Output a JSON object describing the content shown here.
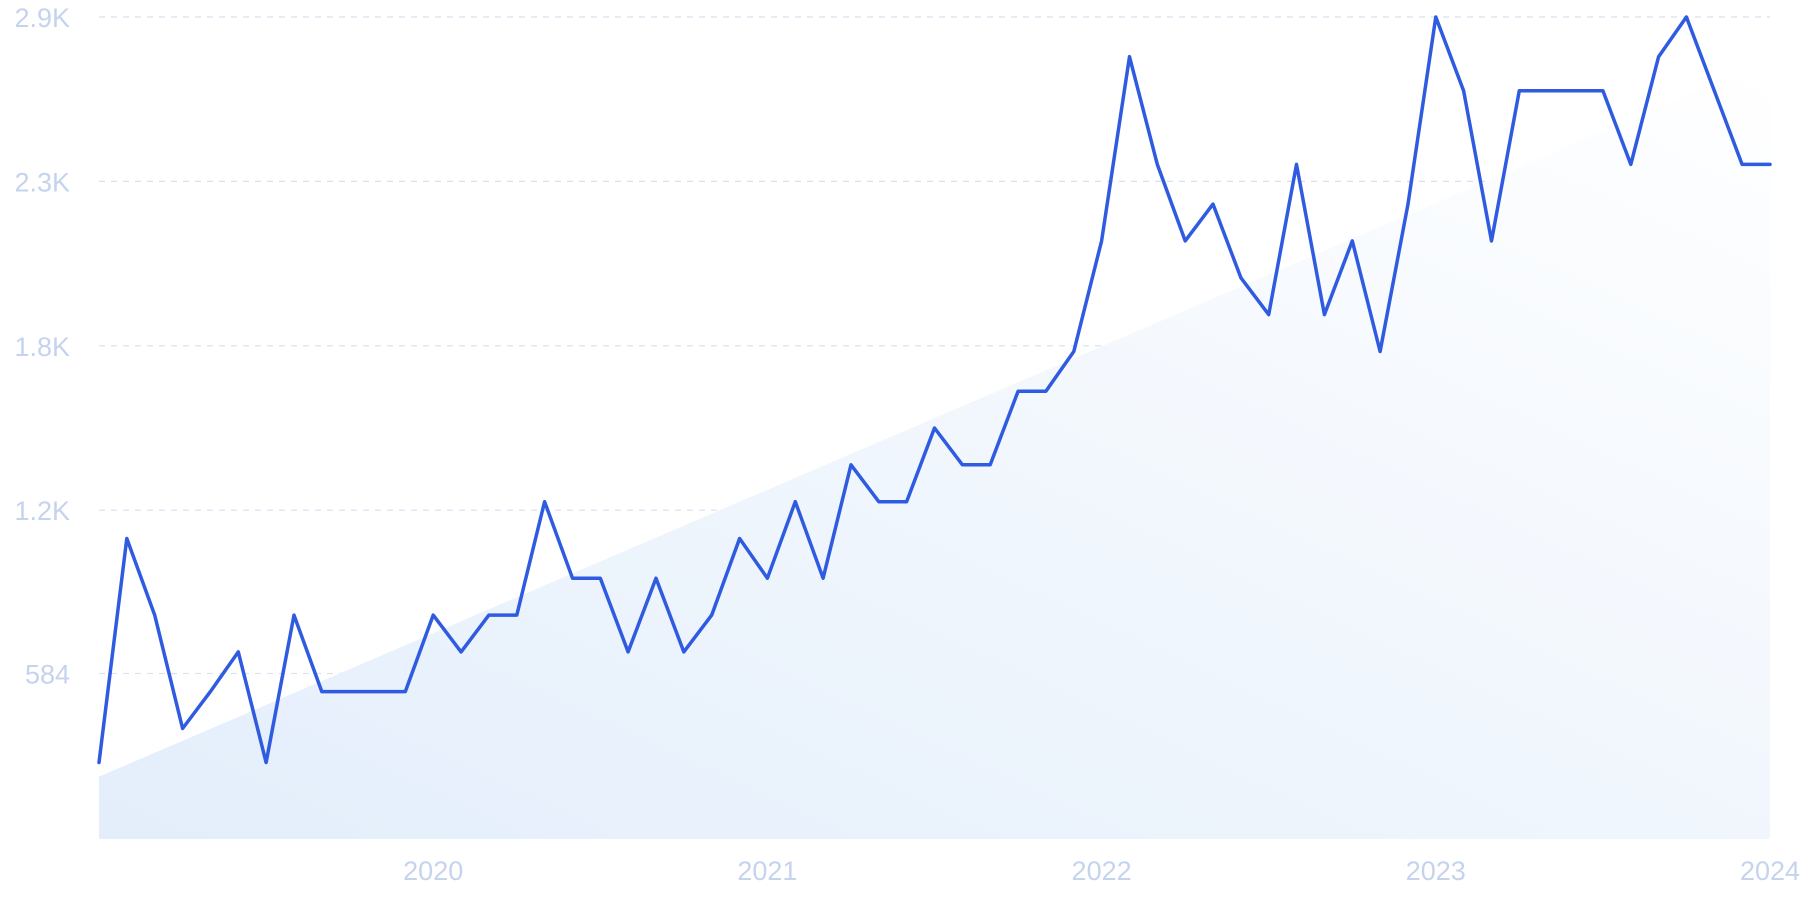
{
  "chart_data": {
    "type": "line",
    "title": "",
    "xlabel": "",
    "ylabel": "",
    "x_ticks": [
      "2020",
      "2021",
      "2022",
      "2023",
      "2024"
    ],
    "y_ticks": [
      "584",
      "1.2K",
      "1.8K",
      "2.3K",
      "2.9K"
    ],
    "y_tick_values": [
      584,
      1160,
      1740,
      2320,
      2900
    ],
    "xlim": [
      "2019-01",
      "2024-01"
    ],
    "ylim": [
      0,
      2900
    ],
    "grid": true,
    "legend": "none",
    "colors": {
      "line": "#2f5be0",
      "trend_fill_start": "#e3eefb",
      "trend_fill_end": "#ffffff",
      "grid": "#d7e1ef",
      "tick_text": "#c5d3ee"
    },
    "trend_area": {
      "start": [
        "2019-01",
        220
      ],
      "end": [
        "2024-01",
        2750
      ]
    },
    "series": [
      {
        "x": [
          "2019-01",
          "2019-02",
          "2019-03",
          "2019-04",
          "2019-05",
          "2019-06",
          "2019-07",
          "2019-08",
          "2019-09",
          "2019-10",
          "2019-11",
          "2019-12",
          "2020-01",
          "2020-02",
          "2020-03",
          "2020-04",
          "2020-05",
          "2020-06",
          "2020-07",
          "2020-08",
          "2020-09",
          "2020-10",
          "2020-11",
          "2020-12",
          "2021-01",
          "2021-02",
          "2021-03",
          "2021-04",
          "2021-05",
          "2021-06",
          "2021-07",
          "2021-08",
          "2021-09",
          "2021-10",
          "2021-11",
          "2021-12",
          "2022-01",
          "2022-02",
          "2022-03",
          "2022-04",
          "2022-05",
          "2022-06",
          "2022-07",
          "2022-08",
          "2022-09",
          "2022-10",
          "2022-11",
          "2022-12",
          "2023-01",
          "2023-02",
          "2023-03",
          "2023-04",
          "2023-05",
          "2023-06",
          "2023-07",
          "2023-08",
          "2023-09",
          "2023-10",
          "2023-11",
          "2023-12",
          "2024-01"
        ],
        "values": [
          270,
          1060,
          790,
          390,
          520,
          660,
          270,
          790,
          520,
          520,
          520,
          520,
          790,
          660,
          790,
          790,
          1190,
          920,
          920,
          660,
          920,
          660,
          790,
          1060,
          920,
          1190,
          920,
          1320,
          1190,
          1190,
          1450,
          1320,
          1320,
          1580,
          1580,
          1720,
          2110,
          2760,
          2380,
          2110,
          2240,
          1980,
          1850,
          2380,
          1850,
          2110,
          1720,
          2240,
          2900,
          2640,
          2110,
          2640,
          2640,
          2640,
          2640,
          2380,
          2760,
          2900,
          2640,
          2380,
          2380
        ]
      }
    ]
  }
}
